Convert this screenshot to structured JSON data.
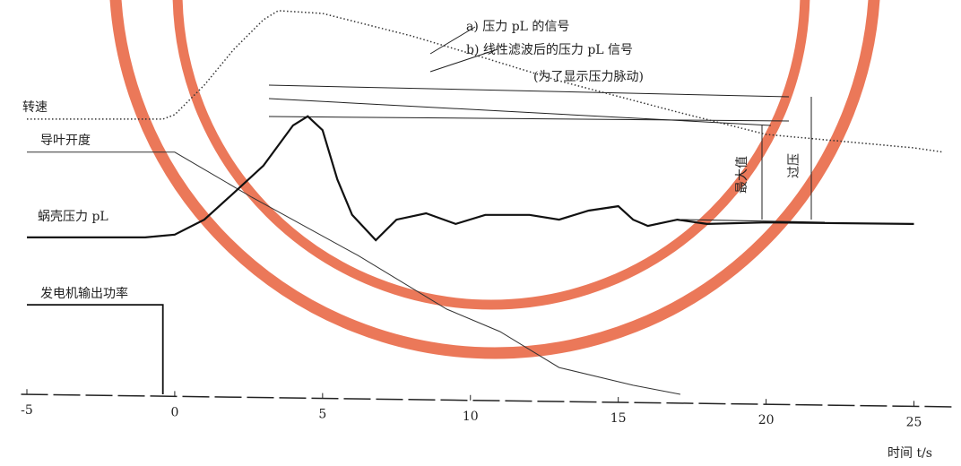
{
  "chart_data": {
    "type": "line",
    "x_label": "时间 t/s",
    "xlim": [
      -5.5,
      26.5
    ],
    "xticks": [
      -5,
      0,
      5,
      10,
      15,
      20,
      25
    ],
    "ylim": [
      0,
      100
    ],
    "series": [
      {
        "name": "转速",
        "color": "#333333",
        "dash": "dotted",
        "x": [
          -5,
          -0.4,
          0,
          1,
          2,
          3,
          3.5,
          5,
          8,
          10,
          13,
          17,
          20,
          25,
          26
        ],
        "values": [
          69.8,
          69.8,
          70.9,
          78.4,
          87.5,
          95,
          97.3,
          96.6,
          90.9,
          86.4,
          79.5,
          71.6,
          65.9,
          62.5,
          61.4
        ]
      },
      {
        "name": "导叶开度",
        "color": "#333333",
        "dash": "thin",
        "x": [
          -5,
          0,
          2.6,
          6.2,
          9.2,
          11,
          13,
          15.5,
          17.1
        ],
        "values": [
          61.4,
          61.4,
          50,
          35.2,
          21.6,
          15.9,
          6.8,
          2.3,
          0
        ]
      },
      {
        "name": "蜗壳压力 pL",
        "color": "#111111",
        "dash": "thick",
        "x": [
          -5,
          -1,
          0,
          1,
          2,
          3,
          4,
          4.5,
          5,
          5.5,
          6,
          6.8,
          7.5,
          8.5,
          9.5,
          10.5,
          12,
          13,
          14,
          15,
          15.5,
          16,
          17,
          18,
          20,
          25
        ],
        "values": [
          39.8,
          39.8,
          40.5,
          44.3,
          51.1,
          58,
          68.2,
          70.5,
          67,
          54.5,
          45.5,
          39.1,
          44.3,
          45.9,
          43.2,
          45.5,
          45.5,
          44.3,
          46.6,
          47.7,
          44.3,
          42.7,
          44.3,
          43.2,
          43.6,
          43.2
        ]
      },
      {
        "name": "发电机输出功率",
        "color": "#111111",
        "dash": "solid",
        "x": [
          -5,
          -0.4,
          -0.4
        ],
        "values": [
          22.7,
          22.7,
          0
        ]
      }
    ],
    "annotations": [
      "a)  压力 pL 的信号",
      "b)  线性滤波后的压力 pL 信号",
      "(为了显示压力脉动)",
      "最大值",
      "过压"
    ]
  }
}
